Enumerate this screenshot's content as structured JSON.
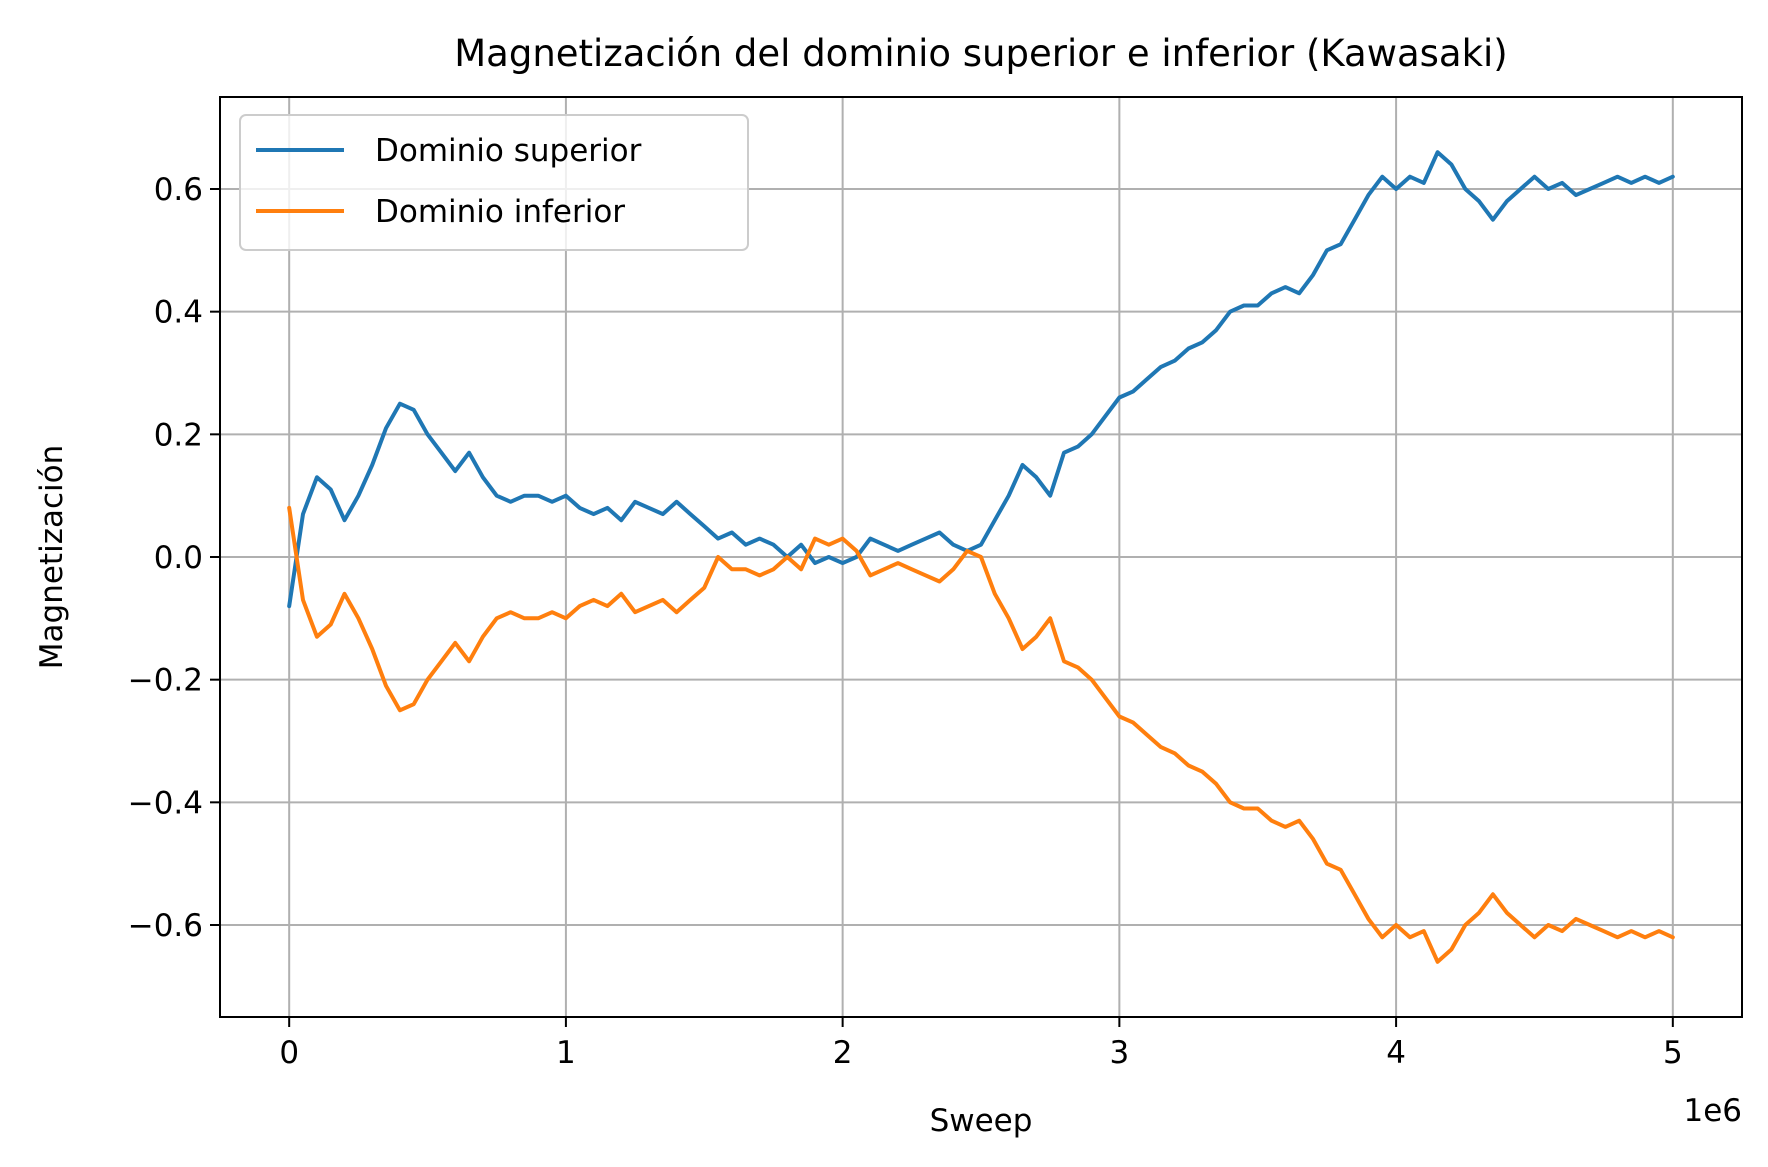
{
  "chart_data": {
    "type": "line",
    "title": "Magnetización del dominio superior e inferior (Kawasaki)",
    "xlabel": "Sweep",
    "ylabel": "Magnetización",
    "x_offset_label": "1e6",
    "xlim": [
      -0.25,
      5.25
    ],
    "ylim": [
      -0.75,
      0.75
    ],
    "x_ticks": [
      0,
      1,
      2,
      3,
      4,
      5
    ],
    "x_tick_labels": [
      "0",
      "1",
      "2",
      "3",
      "4",
      "5"
    ],
    "y_ticks": [
      0.6,
      0.4,
      0.2,
      0.0,
      -0.2,
      -0.4,
      -0.6
    ],
    "y_tick_labels": [
      "0.6",
      "0.4",
      "0.2",
      "0.0",
      "−0.2",
      "−0.4",
      "−0.6"
    ],
    "grid": true,
    "legend_position": "top-left",
    "series": [
      {
        "name": "Dominio superior",
        "color": "#1f77b4",
        "x": [
          0,
          0.05,
          0.1,
          0.15,
          0.2,
          0.25,
          0.3,
          0.35,
          0.4,
          0.45,
          0.5,
          0.55,
          0.6,
          0.65,
          0.7,
          0.75,
          0.8,
          0.85,
          0.9,
          0.95,
          1.0,
          1.05,
          1.1,
          1.15,
          1.2,
          1.25,
          1.3,
          1.35,
          1.4,
          1.45,
          1.5,
          1.55,
          1.6,
          1.65,
          1.7,
          1.75,
          1.8,
          1.85,
          1.9,
          1.95,
          2.0,
          2.05,
          2.1,
          2.15,
          2.2,
          2.25,
          2.3,
          2.35,
          2.4,
          2.45,
          2.5,
          2.55,
          2.6,
          2.65,
          2.7,
          2.75,
          2.8,
          2.85,
          2.9,
          2.95,
          3.0,
          3.05,
          3.1,
          3.15,
          3.2,
          3.25,
          3.3,
          3.35,
          3.4,
          3.45,
          3.5,
          3.55,
          3.6,
          3.65,
          3.7,
          3.75,
          3.8,
          3.85,
          3.9,
          3.95,
          4.0,
          4.05,
          4.1,
          4.15,
          4.2,
          4.25,
          4.3,
          4.35,
          4.4,
          4.45,
          4.5,
          4.55,
          4.6,
          4.65,
          4.7,
          4.75,
          4.8,
          4.85,
          4.9,
          4.95,
          5.0
        ],
        "y": [
          -0.08,
          0.07,
          0.13,
          0.11,
          0.06,
          0.1,
          0.15,
          0.21,
          0.25,
          0.24,
          0.2,
          0.17,
          0.14,
          0.17,
          0.13,
          0.1,
          0.09,
          0.1,
          0.1,
          0.09,
          0.1,
          0.08,
          0.07,
          0.08,
          0.06,
          0.09,
          0.08,
          0.07,
          0.09,
          0.07,
          0.05,
          0.03,
          0.04,
          0.02,
          0.03,
          0.02,
          0.0,
          0.02,
          -0.01,
          0.0,
          -0.01,
          0.0,
          0.03,
          0.02,
          0.01,
          0.02,
          0.03,
          0.04,
          0.02,
          0.01,
          0.02,
          0.06,
          0.1,
          0.15,
          0.13,
          0.1,
          0.17,
          0.18,
          0.2,
          0.23,
          0.26,
          0.27,
          0.29,
          0.31,
          0.32,
          0.34,
          0.35,
          0.37,
          0.4,
          0.41,
          0.41,
          0.43,
          0.44,
          0.43,
          0.46,
          0.5,
          0.51,
          0.55,
          0.59,
          0.62,
          0.6,
          0.62,
          0.61,
          0.66,
          0.64,
          0.6,
          0.58,
          0.55,
          0.58,
          0.6,
          0.62,
          0.6,
          0.61,
          0.59,
          0.6,
          0.61,
          0.62,
          0.61,
          0.62,
          0.61,
          0.62
        ]
      },
      {
        "name": "Dominio inferior",
        "color": "#ff7f0e",
        "x": [
          0,
          0.05,
          0.1,
          0.15,
          0.2,
          0.25,
          0.3,
          0.35,
          0.4,
          0.45,
          0.5,
          0.55,
          0.6,
          0.65,
          0.7,
          0.75,
          0.8,
          0.85,
          0.9,
          0.95,
          1.0,
          1.05,
          1.1,
          1.15,
          1.2,
          1.25,
          1.3,
          1.35,
          1.4,
          1.45,
          1.5,
          1.55,
          1.6,
          1.65,
          1.7,
          1.75,
          1.8,
          1.85,
          1.9,
          1.95,
          2.0,
          2.05,
          2.1,
          2.15,
          2.2,
          2.25,
          2.3,
          2.35,
          2.4,
          2.45,
          2.5,
          2.55,
          2.6,
          2.65,
          2.7,
          2.75,
          2.8,
          2.85,
          2.9,
          2.95,
          3.0,
          3.05,
          3.1,
          3.15,
          3.2,
          3.25,
          3.3,
          3.35,
          3.4,
          3.45,
          3.5,
          3.55,
          3.6,
          3.65,
          3.7,
          3.75,
          3.8,
          3.85,
          3.9,
          3.95,
          4.0,
          4.05,
          4.1,
          4.15,
          4.2,
          4.25,
          4.3,
          4.35,
          4.4,
          4.45,
          4.5,
          4.55,
          4.6,
          4.65,
          4.7,
          4.75,
          4.8,
          4.85,
          4.9,
          4.95,
          5.0
        ],
        "y": [
          0.08,
          -0.07,
          -0.13,
          -0.11,
          -0.06,
          -0.1,
          -0.15,
          -0.21,
          -0.25,
          -0.24,
          -0.2,
          -0.17,
          -0.14,
          -0.17,
          -0.13,
          -0.1,
          -0.09,
          -0.1,
          -0.1,
          -0.09,
          -0.1,
          -0.08,
          -0.07,
          -0.08,
          -0.06,
          -0.09,
          -0.08,
          -0.07,
          -0.09,
          -0.07,
          -0.05,
          0.0,
          -0.02,
          -0.02,
          -0.03,
          -0.02,
          0.0,
          -0.02,
          0.03,
          0.02,
          0.03,
          0.01,
          -0.03,
          -0.02,
          -0.01,
          -0.02,
          -0.03,
          -0.04,
          -0.02,
          0.01,
          0.0,
          -0.06,
          -0.1,
          -0.15,
          -0.13,
          -0.1,
          -0.17,
          -0.18,
          -0.2,
          -0.23,
          -0.26,
          -0.27,
          -0.29,
          -0.31,
          -0.32,
          -0.34,
          -0.35,
          -0.37,
          -0.4,
          -0.41,
          -0.41,
          -0.43,
          -0.44,
          -0.43,
          -0.46,
          -0.5,
          -0.51,
          -0.55,
          -0.59,
          -0.62,
          -0.6,
          -0.62,
          -0.61,
          -0.66,
          -0.64,
          -0.6,
          -0.58,
          -0.55,
          -0.58,
          -0.6,
          -0.62,
          -0.6,
          -0.61,
          -0.59,
          -0.6,
          -0.61,
          -0.62,
          -0.61,
          -0.62,
          -0.61,
          -0.62
        ]
      }
    ]
  }
}
